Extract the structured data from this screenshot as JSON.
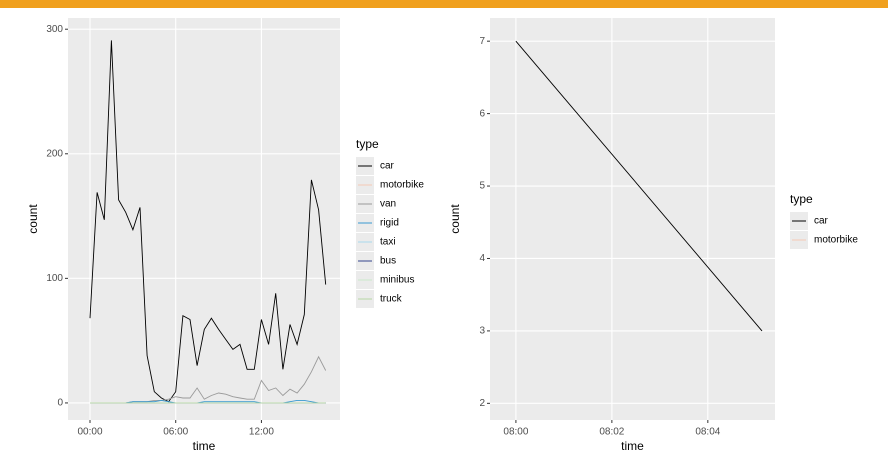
{
  "chart_data": [
    {
      "type": "line",
      "x_label": "time",
      "y_label": "count",
      "legend_title": "type",
      "grid": true,
      "x": [
        0,
        0.5,
        1,
        1.5,
        2,
        2.5,
        3,
        3.5,
        4,
        4.5,
        5,
        5.5,
        6,
        6.5,
        7,
        7.5,
        8,
        8.5,
        9,
        9.5,
        10,
        10.5,
        11,
        11.5,
        12,
        12.5,
        13,
        13.5,
        14,
        14.5,
        15,
        15.5,
        16,
        16.5
      ],
      "xlim": [
        -1.54,
        17.5
      ],
      "xticks": [
        {
          "value": 0,
          "label": "00:00"
        },
        {
          "value": 6,
          "label": "06:00"
        },
        {
          "value": 12,
          "label": "12:00"
        }
      ],
      "ylim": [
        -13.7,
        309
      ],
      "yticks": [
        0,
        100,
        200,
        300
      ],
      "series": [
        {
          "name": "car",
          "color": "#000000",
          "values": [
            68,
            169,
            147,
            291,
            163,
            153,
            139,
            157,
            38,
            9,
            4,
            1,
            9,
            70,
            67,
            30,
            59,
            68,
            59,
            51,
            43,
            47,
            27,
            27,
            67,
            47,
            88,
            27,
            63,
            47,
            71,
            179,
            155,
            95
          ]
        },
        {
          "name": "motorbike",
          "color": "#f6c9b4",
          "values": [
            0,
            0,
            0,
            0,
            0,
            0,
            0,
            0,
            0,
            0,
            0,
            0,
            0,
            0,
            0,
            0,
            0,
            0,
            0,
            0,
            0,
            0,
            0,
            0,
            0,
            0,
            0,
            0,
            0,
            0,
            0,
            0,
            0,
            0
          ]
        },
        {
          "name": "van",
          "color": "#9a9a9a",
          "values": [
            0,
            0,
            0,
            0,
            0,
            0,
            1,
            1,
            1,
            2,
            2,
            3,
            5,
            4,
            4,
            12,
            3,
            6,
            8,
            7,
            5,
            4,
            3,
            3,
            18,
            10,
            12,
            6,
            11,
            8,
            15,
            25,
            37,
            26
          ]
        },
        {
          "name": "rigid",
          "color": "#3a9ad0",
          "values": [
            0,
            0,
            0,
            0,
            0,
            0,
            1,
            1,
            1,
            1,
            2,
            1,
            0,
            0,
            0,
            0,
            1,
            1,
            1,
            1,
            1,
            1,
            1,
            1,
            0,
            0,
            0,
            0,
            1,
            2,
            2,
            1,
            0,
            0
          ]
        },
        {
          "name": "taxi",
          "color": "#a9d8ee",
          "values": [
            0,
            0,
            0,
            0,
            0,
            0,
            0,
            0,
            0,
            0,
            0,
            0,
            0,
            0,
            0,
            0,
            0,
            0,
            0,
            0,
            0,
            0,
            0,
            0,
            0,
            0,
            0,
            0,
            0,
            0,
            0,
            0,
            0,
            0
          ]
        },
        {
          "name": "bus",
          "color": "#34468c",
          "values": [
            0,
            0,
            0,
            0,
            0,
            0,
            0,
            0,
            0,
            0,
            0,
            0,
            0,
            0,
            0,
            0,
            0,
            0,
            0,
            0,
            0,
            0,
            0,
            0,
            0,
            0,
            0,
            0,
            0,
            0,
            0,
            0,
            0,
            0
          ]
        },
        {
          "name": "minibus",
          "color": "#cbe8cb",
          "values": [
            0,
            0,
            0,
            0,
            0,
            0,
            0,
            0,
            0,
            0,
            0,
            0,
            0,
            0,
            0,
            0,
            0,
            0,
            0,
            0,
            0,
            0,
            0,
            0,
            0,
            0,
            0,
            0,
            0,
            0,
            0,
            0,
            0,
            0
          ]
        },
        {
          "name": "truck",
          "color": "#b7d7a6",
          "values": [
            0,
            0,
            0,
            0,
            0,
            0,
            0,
            0,
            0,
            0,
            0,
            0,
            0,
            0,
            0,
            0,
            0,
            0,
            0,
            0,
            0,
            0,
            0,
            0,
            0,
            0,
            0,
            0,
            0,
            0,
            0,
            0,
            0,
            0
          ]
        }
      ]
    },
    {
      "type": "line",
      "x_label": "time",
      "y_label": "count",
      "legend_title": "type",
      "grid": true,
      "x": [
        0,
        5.13
      ],
      "xlim": [
        -0.54,
        5.4
      ],
      "xticks": [
        {
          "value": 0,
          "label": "08:00"
        },
        {
          "value": 2,
          "label": "08:02"
        },
        {
          "value": 4,
          "label": "08:04"
        }
      ],
      "ylim": [
        1.77,
        7.32
      ],
      "yticks": [
        2,
        3,
        4,
        5,
        6,
        7
      ],
      "series": [
        {
          "name": "car",
          "color": "#000000",
          "values": [
            7,
            3
          ]
        },
        {
          "name": "motorbike",
          "color": "#f6c9b4",
          "values": [
            null,
            null
          ]
        }
      ]
    }
  ]
}
